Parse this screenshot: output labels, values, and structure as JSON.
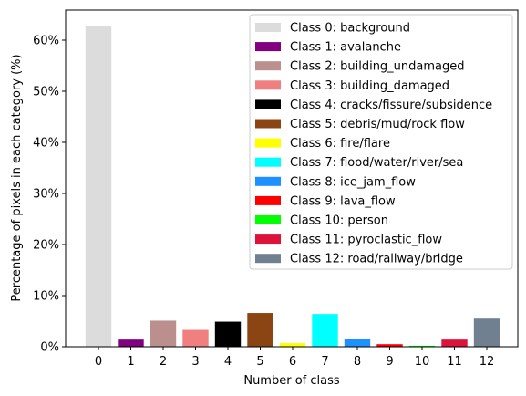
{
  "chart_data": {
    "type": "bar",
    "xlabel": "Number of class",
    "ylabel": "Percentage of pixels in each category (%)",
    "ylim": [
      0,
      65
    ],
    "grid": false,
    "legend_placement": "top-right",
    "categories": [
      "0",
      "1",
      "2",
      "3",
      "4",
      "5",
      "6",
      "7",
      "8",
      "9",
      "10",
      "11",
      "12"
    ],
    "values": [
      62.8,
      1.4,
      5.1,
      3.3,
      4.9,
      6.6,
      0.7,
      6.4,
      1.6,
      0.5,
      0.2,
      1.4,
      5.5
    ],
    "y_ticks": [
      {
        "value": 0,
        "label": "0%"
      },
      {
        "value": 10,
        "label": "10%"
      },
      {
        "value": 20,
        "label": "20%"
      },
      {
        "value": 30,
        "label": "30%"
      },
      {
        "value": 40,
        "label": "40%"
      },
      {
        "value": 50,
        "label": "50%"
      },
      {
        "value": 60,
        "label": "60%"
      }
    ],
    "colors": [
      "#dcdcdc",
      "#800080",
      "#bc8f8f",
      "#f08080",
      "#000000",
      "#8b4513",
      "#ffff00",
      "#00ffff",
      "#1e90ff",
      "#ff0000",
      "#00ff00",
      "#dc143c",
      "#708090"
    ],
    "legend": [
      "Class 0: background",
      "Class 1: avalanche",
      "Class 2: building_undamaged",
      "Class 3: building_damaged",
      "Class 4: cracks/fissure/subsidence",
      "Class 5: debris/mud/rock flow",
      "Class 6: fire/flare",
      "Class 7: flood/water/river/sea",
      "Class 8: ice_jam_flow",
      "Class 9: lava_flow",
      "Class 10: person",
      "Class 11: pyroclastic_flow",
      "Class 12: road/railway/bridge"
    ]
  }
}
